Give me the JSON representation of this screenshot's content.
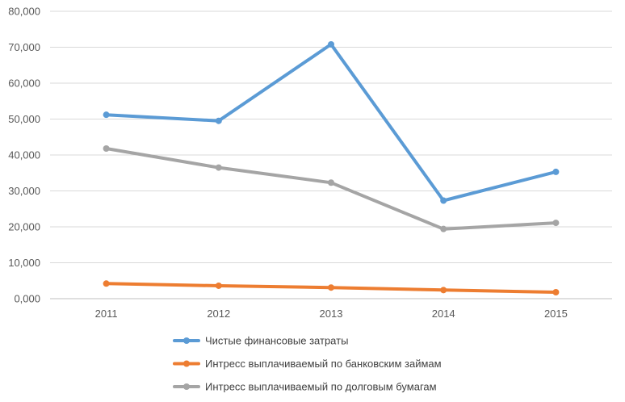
{
  "chart_data": {
    "type": "line",
    "title": "",
    "xlabel": "",
    "ylabel": "",
    "x": [
      "2011",
      "2012",
      "2013",
      "2014",
      "2015"
    ],
    "ylim": [
      0,
      80000
    ],
    "yticks": [
      0,
      10000,
      20000,
      30000,
      40000,
      50000,
      60000,
      70000,
      80000
    ],
    "ytick_labels": [
      "0,000",
      "10,000",
      "20,000",
      "30,000",
      "40,000",
      "50,000",
      "60,000",
      "70,000",
      "80,000"
    ],
    "grid": true,
    "legend_position": "bottom",
    "series": [
      {
        "name": "Чистые финансовые затраты",
        "color": "#5b9bd5",
        "values": [
          51200,
          49500,
          70800,
          27300,
          35300
        ]
      },
      {
        "name": "Интресс выплачиваемый по банковским займам",
        "color": "#ed7d31",
        "values": [
          4200,
          3600,
          3100,
          2400,
          1800
        ]
      },
      {
        "name": "Интресс выплачиваемый по долговым бумагам",
        "color": "#a5a5a5",
        "values": [
          41800,
          36500,
          32300,
          19400,
          21100
        ]
      }
    ]
  }
}
